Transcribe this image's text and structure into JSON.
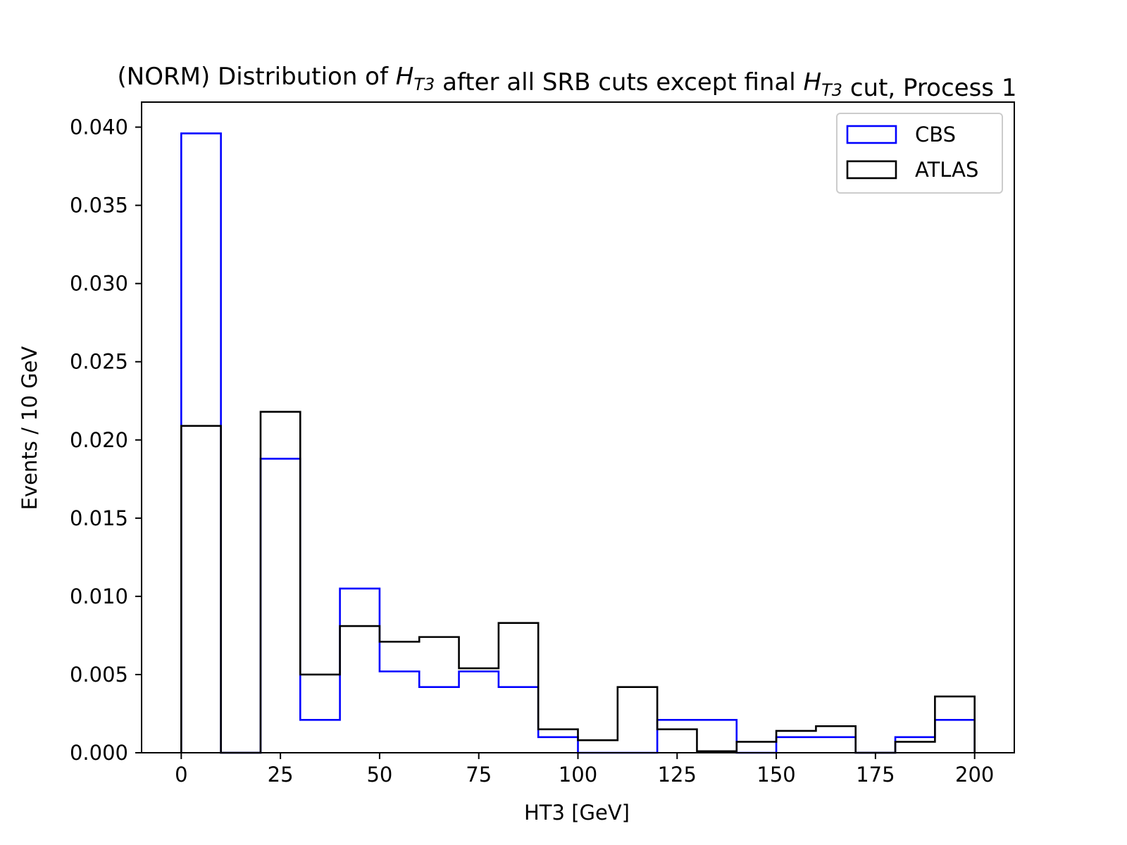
{
  "chart_data": {
    "type": "histogram",
    "title_parts": [
      {
        "text": "(NORM) Distribution of ",
        "math": false
      },
      {
        "text": "H",
        "math": true,
        "sub": "T3"
      },
      {
        "text": " after all SRB cuts except final ",
        "math": false
      },
      {
        "text": "H",
        "math": true,
        "sub": "T3"
      },
      {
        "text": " cut, Process 1",
        "math": false
      }
    ],
    "xlabel": "HT3 [GeV]",
    "ylabel": "Events / 10 GeV",
    "xlim": [
      -10,
      210
    ],
    "ylim": [
      0,
      0.0416
    ],
    "xticks": [
      0,
      25,
      50,
      75,
      100,
      125,
      150,
      175,
      200
    ],
    "xtick_labels": [
      "0",
      "25",
      "50",
      "75",
      "100",
      "125",
      "150",
      "175",
      "200"
    ],
    "yticks": [
      0,
      0.005,
      0.01,
      0.015,
      0.02,
      0.025,
      0.03,
      0.035,
      0.04
    ],
    "ytick_labels": [
      "0.000",
      "0.005",
      "0.010",
      "0.015",
      "0.020",
      "0.025",
      "0.030",
      "0.035",
      "0.040"
    ],
    "bin_edges": [
      0,
      10,
      20,
      30,
      40,
      50,
      60,
      70,
      80,
      90,
      100,
      110,
      120,
      130,
      140,
      150,
      160,
      170,
      180,
      190,
      200
    ],
    "series": [
      {
        "name": "CBS",
        "color": "#0000ff",
        "values": [
          0.0396,
          0.0,
          0.0188,
          0.0021,
          0.0105,
          0.0052,
          0.0042,
          0.0052,
          0.0042,
          0.001,
          0.0,
          0.0,
          0.0021,
          0.0021,
          0.0,
          0.001,
          0.001,
          0.0,
          0.001,
          0.0021
        ]
      },
      {
        "name": "ATLAS",
        "color": "#000000",
        "values": [
          0.0209,
          0.0,
          0.0218,
          0.005,
          0.0081,
          0.0071,
          0.0074,
          0.0054,
          0.0083,
          0.0015,
          0.0008,
          0.0042,
          0.0015,
          0.0001,
          0.0007,
          0.0014,
          0.0017,
          0.0,
          0.0007,
          0.0036
        ]
      }
    ],
    "legend_position": "upper-right",
    "grid": false
  }
}
